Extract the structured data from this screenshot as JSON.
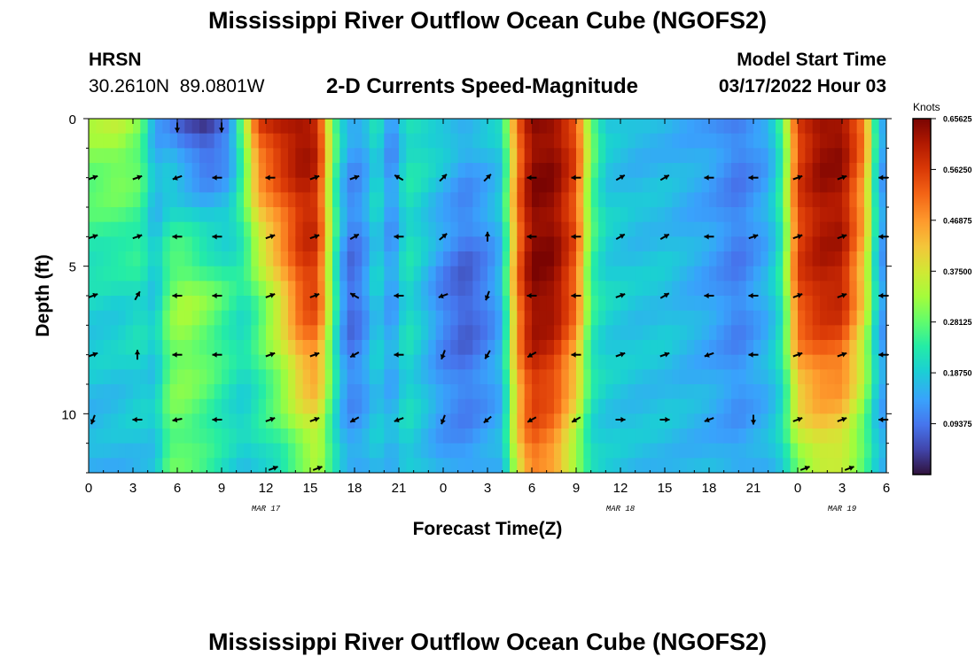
{
  "header": {
    "title": "Mississippi River Outflow Ocean Cube (NGOFS2)",
    "station": "HRSN",
    "coords": "30.2610N  89.0801W",
    "subtitle": "2-D Currents Speed-Magnitude",
    "model_start_label": "Model Start Time",
    "model_start_value": "03/17/2022 Hour 03"
  },
  "footer": {
    "title": "Mississippi River Outflow Ocean Cube (NGOFS2)"
  },
  "chart_data": {
    "type": "heatmap",
    "title": "2-D Currents Speed-Magnitude",
    "xlabel": "Forecast Time(Z)",
    "ylabel": "Depth (ft)",
    "x_hours": [
      0,
      3,
      6,
      9,
      12,
      15,
      18,
      21,
      24,
      27,
      30,
      33,
      36,
      39,
      42,
      45,
      48,
      51,
      54
    ],
    "x_tick_labels": [
      "0",
      "3",
      "6",
      "9",
      "12",
      "15",
      "18",
      "21",
      "0",
      "3",
      "6",
      "9",
      "12",
      "15",
      "18",
      "21",
      "0",
      "3",
      "6"
    ],
    "x_dates": [
      {
        "label": "MAR 17",
        "hour": 12
      },
      {
        "label": "MAR 18",
        "hour": 36
      },
      {
        "label": "MAR 19",
        "hour": 51
      }
    ],
    "xlim": [
      0,
      54
    ],
    "y_ticks": [
      0,
      5,
      10
    ],
    "y_tick_labels": [
      "0",
      "5",
      "10"
    ],
    "ylim": [
      0,
      12
    ],
    "colorbar": {
      "label": "Knots",
      "range": [
        0,
        0.6562
      ],
      "tick_values": [
        0.09375,
        0.1875,
        0.28125,
        0.375,
        0.46875,
        0.5625,
        0.65625
      ],
      "tick_labels": [
        "0.09375",
        "0.18750",
        "0.28125",
        "0.37500",
        "0.46875",
        "0.56250",
        "0.65625"
      ]
    },
    "speed_profile": [
      {
        "hour": 0,
        "top": 0.33,
        "mid": 0.2,
        "bottom": 0.15
      },
      {
        "hour": 2,
        "top": 0.35,
        "mid": 0.2,
        "bottom": 0.16
      },
      {
        "hour": 3.5,
        "top": 0.3,
        "mid": 0.22,
        "bottom": 0.17
      },
      {
        "hour": 4.5,
        "top": 0.14,
        "mid": 0.18,
        "bottom": 0.18
      },
      {
        "hour": 5.5,
        "top": 0.12,
        "mid": 0.3,
        "bottom": 0.28
      },
      {
        "hour": 6.5,
        "top": 0.06,
        "mid": 0.33,
        "bottom": 0.27
      },
      {
        "hour": 8,
        "top": 0.02,
        "mid": 0.3,
        "bottom": 0.24
      },
      {
        "hour": 9.5,
        "top": 0.09,
        "mid": 0.25,
        "bottom": 0.2
      },
      {
        "hour": 10.5,
        "top": 0.3,
        "mid": 0.22,
        "bottom": 0.18
      },
      {
        "hour": 11.5,
        "top": 0.56,
        "mid": 0.28,
        "bottom": 0.2
      },
      {
        "hour": 13,
        "top": 0.62,
        "mid": 0.4,
        "bottom": 0.22
      },
      {
        "hour": 14.5,
        "top": 0.64,
        "mid": 0.55,
        "bottom": 0.28
      },
      {
        "hour": 15.5,
        "top": 0.6,
        "mid": 0.56,
        "bottom": 0.32
      },
      {
        "hour": 16.5,
        "top": 0.3,
        "mid": 0.28,
        "bottom": 0.22
      },
      {
        "hour": 17.5,
        "top": 0.15,
        "mid": 0.07,
        "bottom": 0.15
      },
      {
        "hour": 18.5,
        "top": 0.14,
        "mid": 0.1,
        "bottom": 0.15
      },
      {
        "hour": 19.5,
        "top": 0.22,
        "mid": 0.2,
        "bottom": 0.18
      },
      {
        "hour": 20.5,
        "top": 0.1,
        "mid": 0.12,
        "bottom": 0.16
      },
      {
        "hour": 21.5,
        "top": 0.22,
        "mid": 0.22,
        "bottom": 0.2
      },
      {
        "hour": 22.5,
        "top": 0.22,
        "mid": 0.18,
        "bottom": 0.18
      },
      {
        "hour": 24,
        "top": 0.2,
        "mid": 0.1,
        "bottom": 0.14
      },
      {
        "hour": 25.5,
        "top": 0.16,
        "mid": 0.06,
        "bottom": 0.13
      },
      {
        "hour": 27,
        "top": 0.18,
        "mid": 0.1,
        "bottom": 0.15
      },
      {
        "hour": 28,
        "top": 0.2,
        "mid": 0.16,
        "bottom": 0.16
      },
      {
        "hour": 29,
        "top": 0.5,
        "mid": 0.5,
        "bottom": 0.38
      },
      {
        "hour": 30,
        "top": 0.64,
        "mid": 0.65,
        "bottom": 0.5
      },
      {
        "hour": 31.5,
        "top": 0.64,
        "mid": 0.64,
        "bottom": 0.45
      },
      {
        "hour": 33,
        "top": 0.55,
        "mid": 0.52,
        "bottom": 0.3
      },
      {
        "hour": 34,
        "top": 0.3,
        "mid": 0.25,
        "bottom": 0.2
      },
      {
        "hour": 35,
        "top": 0.18,
        "mid": 0.2,
        "bottom": 0.18
      },
      {
        "hour": 37,
        "top": 0.16,
        "mid": 0.18,
        "bottom": 0.17
      },
      {
        "hour": 39,
        "top": 0.16,
        "mid": 0.18,
        "bottom": 0.17
      },
      {
        "hour": 42,
        "top": 0.14,
        "mid": 0.14,
        "bottom": 0.16
      },
      {
        "hour": 44,
        "top": 0.1,
        "mid": 0.1,
        "bottom": 0.14
      },
      {
        "hour": 46,
        "top": 0.14,
        "mid": 0.16,
        "bottom": 0.16
      },
      {
        "hour": 47,
        "top": 0.26,
        "mid": 0.24,
        "bottom": 0.2
      },
      {
        "hour": 48,
        "top": 0.56,
        "mid": 0.55,
        "bottom": 0.3
      },
      {
        "hour": 49.5,
        "top": 0.64,
        "mid": 0.6,
        "bottom": 0.35
      },
      {
        "hour": 51,
        "top": 0.64,
        "mid": 0.6,
        "bottom": 0.34
      },
      {
        "hour": 52.5,
        "top": 0.5,
        "mid": 0.4,
        "bottom": 0.25
      },
      {
        "hour": 53.3,
        "top": 0.22,
        "mid": 0.2,
        "bottom": 0.18
      },
      {
        "hour": 54,
        "top": 0.1,
        "mid": 0.1,
        "bottom": 0.14
      }
    ],
    "arrow_hours": [
      0.3,
      3.3,
      6,
      8.7,
      12.3,
      15.3,
      18,
      21,
      24,
      27,
      30,
      33,
      36,
      39,
      42,
      45,
      48,
      51,
      53.8
    ],
    "arrow_depths": [
      2,
      4,
      6,
      8,
      10.2
    ],
    "arrow_directions": [
      [
        20,
        20,
        200,
        180,
        180,
        20,
        20,
        150,
        45,
        45,
        180,
        180,
        30,
        30,
        180,
        180,
        20,
        20,
        180
      ],
      [
        20,
        20,
        180,
        180,
        20,
        20,
        30,
        180,
        40,
        90,
        180,
        180,
        30,
        30,
        180,
        20,
        20,
        20,
        180
      ],
      [
        20,
        60,
        180,
        180,
        20,
        20,
        150,
        180,
        200,
        250,
        180,
        180,
        20,
        30,
        180,
        180,
        20,
        20,
        180
      ],
      [
        20,
        90,
        180,
        180,
        20,
        20,
        210,
        180,
        250,
        240,
        210,
        180,
        20,
        20,
        200,
        180,
        20,
        20,
        180
      ],
      [
        250,
        180,
        190,
        180,
        20,
        20,
        210,
        200,
        250,
        220,
        210,
        210,
        0,
        0,
        200,
        270,
        20,
        20,
        180
      ]
    ],
    "top_arrows": [
      {
        "hour": 6,
        "dir": 270
      },
      {
        "hour": 9,
        "dir": 270
      }
    ],
    "bottom_arrows": [
      {
        "hour": 12.5,
        "dir": 20
      },
      {
        "hour": 15.5,
        "dir": 20
      },
      {
        "hour": 48.5,
        "dir": 20
      },
      {
        "hour": 51.5,
        "dir": 20
      }
    ]
  }
}
